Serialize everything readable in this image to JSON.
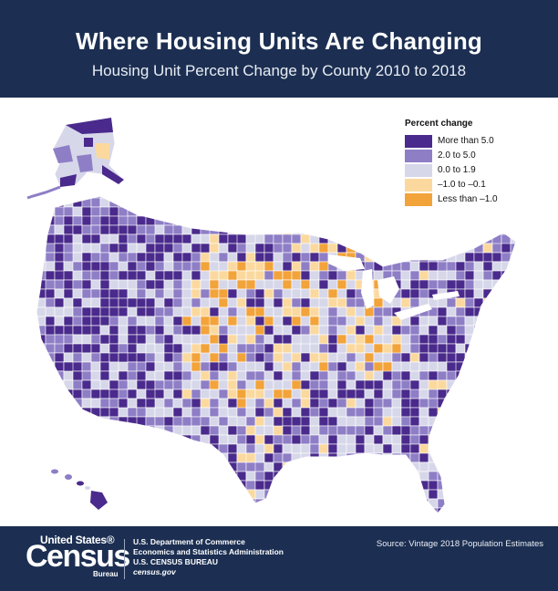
{
  "header": {
    "title": "Where Housing Units Are Changing",
    "subtitle": "Housing Unit Percent Change by County 2010 to 2018"
  },
  "legend": {
    "title": "Percent change",
    "items": [
      {
        "label": "More than 5.0",
        "color": "#4a2a8c"
      },
      {
        "label": "2.0 to 5.0",
        "color": "#8e7ec6"
      },
      {
        "label": "0.0 to 1.9",
        "color": "#d7d7ea"
      },
      {
        "label": "–1.0 to –0.1",
        "color": "#fbd99e"
      },
      {
        "label": "Less than –1.0",
        "color": "#f2a33a"
      }
    ]
  },
  "map": {
    "regions": [
      "Alaska",
      "Hawaii",
      "Contiguous United States"
    ],
    "water_color": "#ffffff",
    "border_color": "#ffffff"
  },
  "footer": {
    "logo_line1": "United States®",
    "logo_line2": "Census",
    "logo_line3": "Bureau",
    "agency_line1": "U.S. Department of Commerce",
    "agency_line2": "Economics and Statistics Administration",
    "agency_line3": "U.S. CENSUS BUREAU",
    "agency_line4": "census.gov",
    "source": "Source: Vintage 2018 Population Estimates"
  }
}
